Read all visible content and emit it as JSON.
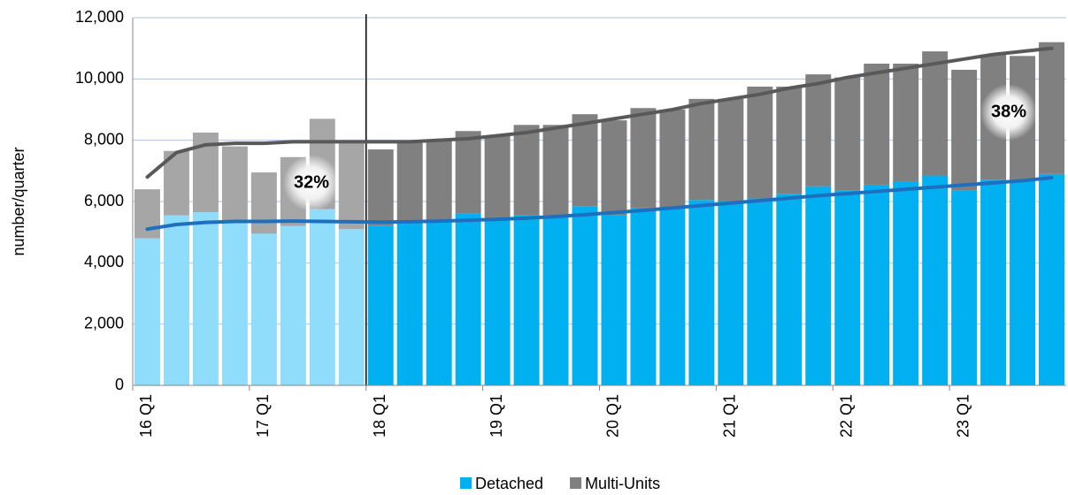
{
  "chart_data": {
    "type": "stacked-bar",
    "y_axis_label": "number/quarter",
    "categories": [
      "16 Q1",
      null,
      null,
      null,
      "17 Q1",
      null,
      null,
      null,
      "18 Q1",
      null,
      null,
      null,
      "19 Q1",
      null,
      null,
      null,
      "20 Q1",
      null,
      null,
      null,
      "21 Q1",
      null,
      null,
      null,
      "22 Q1",
      null,
      null,
      null,
      "23 Q1",
      null,
      null,
      null
    ],
    "series": [
      {
        "name": "Detached",
        "color": "#00b0f0",
        "history_color": "#8fdcfb",
        "history_count": 8,
        "values": [
          4800,
          5550,
          5650,
          5300,
          4950,
          5200,
          5750,
          5100,
          5200,
          5300,
          5400,
          5600,
          5400,
          5550,
          5550,
          5850,
          5550,
          5800,
          5800,
          6050,
          6000,
          6100,
          6250,
          6500,
          6350,
          6550,
          6650,
          6850,
          6350,
          6700,
          6700,
          6900
        ],
        "trend_color": "#1f6fbf",
        "trend": [
          5100,
          5250,
          5320,
          5350,
          5350,
          5360,
          5350,
          5340,
          5330,
          5340,
          5360,
          5390,
          5420,
          5460,
          5510,
          5570,
          5640,
          5710,
          5790,
          5870,
          5950,
          6030,
          6110,
          6190,
          6260,
          6330,
          6400,
          6470,
          6540,
          6610,
          6680,
          6780
        ]
      },
      {
        "name": "Multi-Units",
        "color": "#808080",
        "history_color": "#a6a6a6",
        "history_count": 8,
        "values": [
          1600,
          2100,
          2600,
          2500,
          2000,
          2250,
          2950,
          2800,
          2500,
          2650,
          2600,
          2700,
          2750,
          2950,
          2950,
          3000,
          3100,
          3250,
          3200,
          3300,
          3350,
          3650,
          3500,
          3650,
          3700,
          3950,
          3850,
          4050,
          3950,
          4100,
          4050,
          4300
        ],
        "trend_color": "#595959",
        "trend": [
          6800,
          7600,
          7850,
          7900,
          7900,
          7950,
          7950,
          7950,
          7950,
          7950,
          8000,
          8050,
          8150,
          8250,
          8400,
          8550,
          8700,
          8850,
          9000,
          9200,
          9350,
          9500,
          9700,
          9850,
          10050,
          10200,
          10350,
          10500,
          10650,
          10800,
          10900,
          11000
        ]
      }
    ],
    "annotations": [
      "32%",
      "38%"
    ],
    "ylim": [
      0,
      12000
    ],
    "yticks": [
      0,
      {
        "value": 2000,
        "label": "2,000"
      },
      {
        "value": 4000,
        "label": "4,000"
      },
      {
        "value": 6000,
        "label": "6,000"
      },
      {
        "value": 8000,
        "label": "8,000"
      },
      {
        "value": 10000,
        "label": "10,000"
      },
      {
        "value": 12000,
        "label": "12,000"
      }
    ],
    "grid": true,
    "legend": "bottom"
  }
}
